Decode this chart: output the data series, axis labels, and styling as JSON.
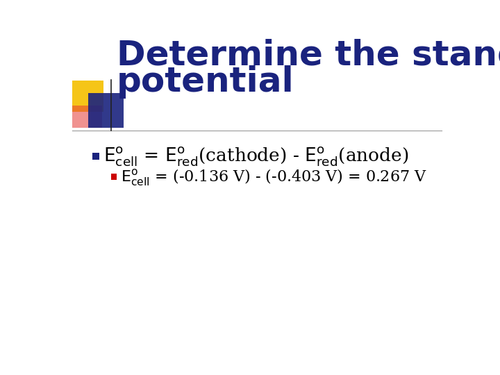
{
  "title_line1": "Determine the standard cell",
  "title_line2": "potential",
  "title_color": "#1a237e",
  "title_fontsize": 36,
  "bg_color": "#ffffff",
  "bullet1_marker_color": "#1a237e",
  "bullet2_marker_color": "#cc0000",
  "bullet1_text_color": "#000000",
  "bullet2_text_color": "#000000",
  "line_color": "#999999",
  "decor_yellow": "#f5c518",
  "decor_blue": "#1a237e",
  "decor_red": "#e53935",
  "bullet1_fontsize": 19,
  "bullet2_fontsize": 16
}
